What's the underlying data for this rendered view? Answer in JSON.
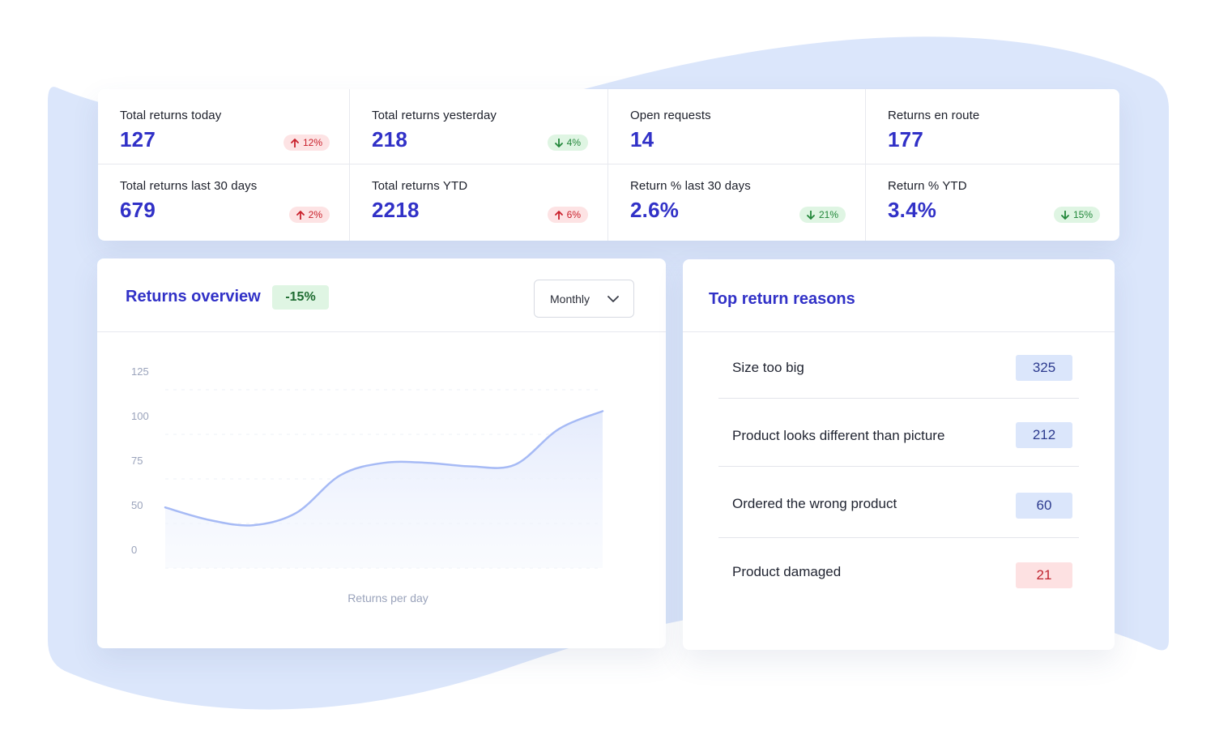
{
  "stats": [
    {
      "label": "Total returns today",
      "value": "127",
      "change": "12%",
      "direction": "up"
    },
    {
      "label": "Total returns yesterday",
      "value": "218",
      "change": "4%",
      "direction": "down"
    },
    {
      "label": "Open requests",
      "value": "14",
      "change": "",
      "direction": ""
    },
    {
      "label": "Returns en route",
      "value": "177",
      "change": "",
      "direction": ""
    },
    {
      "label": "Total returns last 30 days",
      "value": "679",
      "change": "2%",
      "direction": "up"
    },
    {
      "label": "Total returns YTD",
      "value": "2218",
      "change": "6%",
      "direction": "up"
    },
    {
      "label": "Return % last 30 days",
      "value": "2.6%",
      "change": "21%",
      "direction": "down"
    },
    {
      "label": "Return % YTD",
      "value": "3.4%",
      "change": "15%",
      "direction": "down"
    }
  ],
  "overview": {
    "title": "Returns overview",
    "change": "-15%",
    "period": "Monthly"
  },
  "reasons": {
    "title": "Top return reasons",
    "items": [
      {
        "label": "Size too big",
        "count": "325",
        "tone": "blue"
      },
      {
        "label": "Product looks different than picture",
        "count": "212",
        "tone": "blue"
      },
      {
        "label": "Ordered the wrong product",
        "count": "60",
        "tone": "blue"
      },
      {
        "label": "Product damaged",
        "count": "21",
        "tone": "red"
      }
    ]
  },
  "colors": {
    "accent": "#3131c7",
    "line": "#a6baf5",
    "backdrop": "#dbe6fb",
    "up_badge": "#fde3e4",
    "down_badge": "#dff5e3"
  },
  "chart_data": {
    "type": "area",
    "title": "",
    "xlabel": "Returns per day",
    "ylabel": "",
    "y_ticks": [
      "0",
      "50",
      "75",
      "100",
      "125"
    ],
    "x": [
      0,
      1,
      2,
      3,
      4,
      5,
      6,
      7,
      8,
      9,
      10
    ],
    "values": [
      59,
      52,
      48,
      56,
      77,
      84,
      84,
      82,
      83,
      103,
      113
    ],
    "ylim": [
      0,
      125
    ],
    "grid": true,
    "legend": "none"
  }
}
